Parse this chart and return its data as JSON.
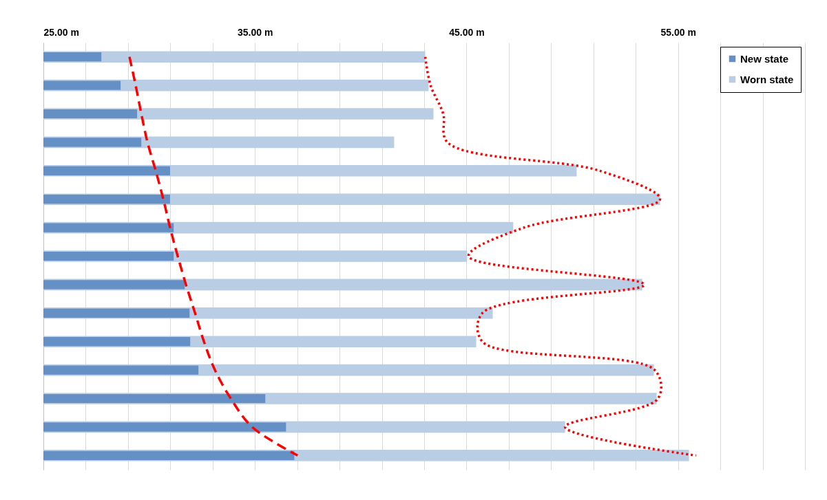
{
  "chart_data": {
    "type": "bar",
    "orientation": "horizontal",
    "categories": [
      null,
      null,
      null,
      null,
      null,
      null,
      null,
      null,
      null,
      null,
      null,
      null,
      null,
      null,
      null
    ],
    "series": [
      {
        "name": "New state",
        "color": "#6490c6",
        "values": [
          27.74,
          28.65,
          29.43,
          29.63,
          30.99,
          30.99,
          31.16,
          31.16,
          31.68,
          31.91,
          31.94,
          32.33,
          35.49,
          36.47,
          36.86
        ]
      },
      {
        "name": "Worn state",
        "color": "#b9cde5",
        "values": [
          43.05,
          43.21,
          43.44,
          41.58,
          50.21,
          54.15,
          47.21,
          45.03,
          53.31,
          46.24,
          45.46,
          53.86,
          53.99,
          49.66,
          55.52
        ]
      },
      {
        "type": "line",
        "color": "#ff0000",
        "line_style": "dashed",
        "values": [
          29.07,
          29.36,
          29.63,
          29.92,
          30.31,
          30.67,
          30.99,
          31.35,
          31.74,
          32.17,
          32.59,
          33.11,
          33.86,
          34.87,
          37.02
        ]
      },
      {
        "type": "line",
        "color": "#ff0000",
        "line_style": "dotted",
        "values": [
          43.05,
          43.3,
          43.9,
          44.1,
          51.3,
          54.15,
          47.7,
          45.1,
          53.4,
          45.75,
          45.75,
          53.9,
          54.05,
          49.66,
          55.85
        ]
      }
    ],
    "xlim": [
      25,
      61
    ],
    "xticks": [
      {
        "value": 25,
        "label": "25.00 m"
      },
      {
        "value": 27,
        "label": null
      },
      {
        "value": 29,
        "label": null
      },
      {
        "value": 31,
        "label": null
      },
      {
        "value": 33,
        "label": null
      },
      {
        "value": 35,
        "label": "35.00 m"
      },
      {
        "value": 37,
        "label": null
      },
      {
        "value": 39,
        "label": null
      },
      {
        "value": 41,
        "label": null
      },
      {
        "value": 43,
        "label": null
      },
      {
        "value": 45,
        "label": "45.00 m"
      },
      {
        "value": 47,
        "label": null
      },
      {
        "value": 49,
        "label": null
      },
      {
        "value": 51,
        "label": null
      },
      {
        "value": 53,
        "label": null
      },
      {
        "value": 55,
        "label": "55.00 m"
      },
      {
        "value": 57,
        "label": null
      },
      {
        "value": 59,
        "label": null
      },
      {
        "value": 61,
        "label": null
      }
    ],
    "grid": "x",
    "legend": "top right",
    "tick_labels": "x"
  }
}
